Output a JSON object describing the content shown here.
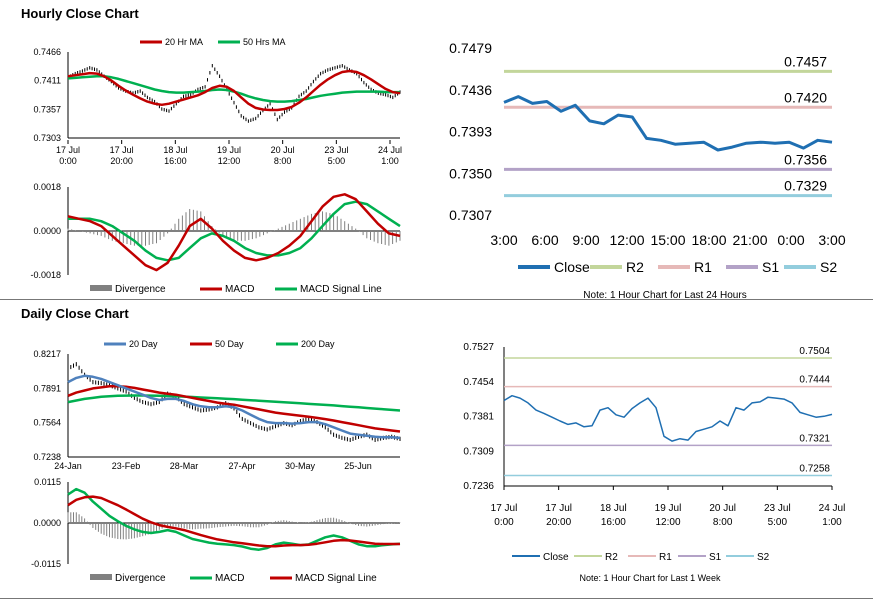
{
  "hourly_section_title": "Hourly Close Chart",
  "daily_section_title": "Daily Close Chart",
  "colors": {
    "red": "#c00000",
    "green": "#00b050",
    "blue": "#4f81bd",
    "dark_blue": "#1f6fb2",
    "price": "#000000",
    "hist": "#808080",
    "r2": "#c3d69b",
    "r1": "#e6b9b8",
    "s1": "#b3a2c7",
    "s2": "#93cddd"
  },
  "chart_data": [
    {
      "id": "hourly_price",
      "type": "line",
      "legend": [
        "20 Hr MA",
        "50 Hrs MA"
      ],
      "yticks": [
        "0.7466",
        "0.7411",
        "0.7357",
        "0.7303"
      ],
      "ylim": [
        0.7303,
        0.7466
      ],
      "xticks": [
        [
          "17 Jul",
          "0:00"
        ],
        [
          "17 Jul",
          "20:00"
        ],
        [
          "18 Jul",
          "16:00"
        ],
        [
          "19 Jul",
          "12:00"
        ],
        [
          "20 Jul",
          "8:00"
        ],
        [
          "23 Jul",
          "5:00"
        ],
        [
          "24 Jul",
          "1:00"
        ]
      ],
      "close": [
        0.7418,
        0.7425,
        0.743,
        0.7436,
        0.7432,
        0.742,
        0.741,
        0.7398,
        0.7392,
        0.7388,
        0.7392,
        0.738,
        0.7372,
        0.7358,
        0.7354,
        0.7368,
        0.7382,
        0.7385,
        0.7395,
        0.74,
        0.744,
        0.742,
        0.7395,
        0.737,
        0.7345,
        0.7335,
        0.734,
        0.7355,
        0.7368,
        0.7338,
        0.7352,
        0.736,
        0.7382,
        0.7392,
        0.741,
        0.7425,
        0.7432,
        0.7436,
        0.744,
        0.7432,
        0.7425,
        0.7408,
        0.7395,
        0.7388,
        0.7385,
        0.738,
        0.739
      ],
      "ma20": [
        0.742,
        0.7422,
        0.7424,
        0.7426,
        0.7425,
        0.742,
        0.7412,
        0.7402,
        0.7393,
        0.7385,
        0.7378,
        0.7372,
        0.7368,
        0.7366,
        0.7368,
        0.7372,
        0.7376,
        0.738,
        0.7384,
        0.739,
        0.7398,
        0.7402,
        0.74,
        0.7392,
        0.738,
        0.7368,
        0.736,
        0.7357,
        0.7356,
        0.7356,
        0.7358,
        0.7362,
        0.737,
        0.738,
        0.7392,
        0.7404,
        0.7414,
        0.7422,
        0.7428,
        0.743,
        0.7428,
        0.7422,
        0.7414,
        0.7405,
        0.7396,
        0.739,
        0.7388
      ],
      "ma50": [
        0.7416,
        0.7417,
        0.7418,
        0.7419,
        0.742,
        0.742,
        0.7418,
        0.7415,
        0.7411,
        0.7407,
        0.7403,
        0.7399,
        0.7395,
        0.7392,
        0.739,
        0.7389,
        0.7389,
        0.739,
        0.7391,
        0.7392,
        0.7394,
        0.7395,
        0.7394,
        0.7391,
        0.7387,
        0.7382,
        0.7378,
        0.7375,
        0.7373,
        0.7372,
        0.7372,
        0.7373,
        0.7375,
        0.7377,
        0.738,
        0.7383,
        0.7385,
        0.7387,
        0.7389,
        0.739,
        0.7391,
        0.7391,
        0.7391,
        0.7391,
        0.739,
        0.739,
        0.739
      ]
    },
    {
      "id": "hourly_macd",
      "type": "line",
      "legend": [
        "Divergence",
        "MACD",
        "MACD Signal Line"
      ],
      "yticks": [
        "0.0018",
        "0.0000",
        "-0.0018"
      ],
      "ylim": [
        -0.0018,
        0.0018
      ],
      "macd": [
        0.0006,
        0.0005,
        0.0004,
        0.0002,
        -0.0002,
        -0.0006,
        -0.001,
        -0.0014,
        -0.0016,
        -0.0013,
        -0.0006,
        0.0002,
        0.0005,
        0.0001,
        -0.0004,
        -0.0008,
        -0.0011,
        -0.0012,
        -0.0011,
        -0.0009,
        -0.0006,
        -0.0002,
        0.0004,
        0.001,
        0.0014,
        0.0015,
        0.0013,
        0.0008,
        0.0003,
        -0.0001,
        -0.0002
      ],
      "signal": [
        0.0005,
        0.0005,
        0.0005,
        0.0004,
        0.0002,
        -0.0001,
        -0.0004,
        -0.0008,
        -0.0011,
        -0.0012,
        -0.0011,
        -0.0007,
        -0.0003,
        -0.0001,
        -0.0002,
        -0.0004,
        -0.0007,
        -0.0009,
        -0.001,
        -0.001,
        -0.0009,
        -0.0007,
        -0.0003,
        0.0002,
        0.0007,
        0.0011,
        0.0012,
        0.0011,
        0.0008,
        0.0005,
        0.0002
      ],
      "divergence": [
        0.0001,
        0.0,
        -0.0001,
        -0.0002,
        -0.0004,
        -0.0005,
        -0.0006,
        -0.0006,
        -0.0005,
        -0.0001,
        0.0005,
        0.0009,
        0.0008,
        0.0002,
        -0.0002,
        -0.0004,
        -0.0004,
        -0.0003,
        -0.0001,
        0.0001,
        0.0003,
        0.0005,
        0.0007,
        0.0008,
        0.0007,
        0.0004,
        0.0001,
        -0.0003,
        -0.0005,
        -0.0006,
        -0.0004
      ]
    },
    {
      "id": "hourly_24h",
      "type": "line",
      "yticks": [
        "0.7479",
        "0.7436",
        "0.7393",
        "0.7350",
        "0.7307"
      ],
      "ylim": [
        0.7307,
        0.7479
      ],
      "xticks": [
        "3:00",
        "6:00",
        "9:00",
        "12:00",
        "15:00",
        "18:00",
        "21:00",
        "0:00",
        "3:00"
      ],
      "close": [
        0.7425,
        0.7431,
        0.7424,
        0.7426,
        0.7416,
        0.7422,
        0.7406,
        0.7403,
        0.7412,
        0.741,
        0.7388,
        0.7386,
        0.7382,
        0.7383,
        0.7384,
        0.7376,
        0.7379,
        0.7383,
        0.7384,
        0.7383,
        0.7384,
        0.7378,
        0.7386,
        0.7384
      ],
      "levels": {
        "R2": 0.7457,
        "R1": 0.742,
        "S1": 0.7356,
        "S2": 0.7329
      },
      "level_labels": {
        "R2": "0.7457",
        "R1": "0.7420",
        "S1": "0.7356",
        "S2": "0.7329"
      },
      "legend": [
        "Close",
        "R2",
        "R1",
        "S1",
        "S2"
      ],
      "note": "Note: 1 Hour Chart for Last 24 Hours"
    },
    {
      "id": "daily_price",
      "type": "line",
      "legend": [
        "20 Day",
        "50 Day",
        "200 Day"
      ],
      "yticks": [
        "0.8217",
        "0.7891",
        "0.7564",
        "0.7238"
      ],
      "ylim": [
        0.7238,
        0.8217
      ],
      "xticks": [
        "24-Jan",
        "23-Feb",
        "28-Mar",
        "27-Apr",
        "30-May",
        "25-Jun"
      ],
      "close": [
        0.808,
        0.812,
        0.802,
        0.795,
        0.794,
        0.792,
        0.789,
        0.786,
        0.78,
        0.776,
        0.774,
        0.776,
        0.784,
        0.781,
        0.774,
        0.771,
        0.768,
        0.769,
        0.771,
        0.775,
        0.77,
        0.76,
        0.756,
        0.752,
        0.75,
        0.753,
        0.756,
        0.754,
        0.758,
        0.76,
        0.757,
        0.752,
        0.745,
        0.742,
        0.74,
        0.743,
        0.745,
        0.74,
        0.742,
        0.743,
        0.741
      ],
      "ma20": [
        0.795,
        0.799,
        0.801,
        0.8,
        0.798,
        0.795,
        0.792,
        0.789,
        0.786,
        0.783,
        0.78,
        0.778,
        0.779,
        0.779,
        0.777,
        0.774,
        0.772,
        0.771,
        0.771,
        0.772,
        0.771,
        0.768,
        0.764,
        0.76,
        0.757,
        0.756,
        0.756,
        0.7555,
        0.756,
        0.757,
        0.757,
        0.755,
        0.752,
        0.749,
        0.746,
        0.745,
        0.744,
        0.743,
        0.7425,
        0.7425,
        0.742
      ],
      "ma50": [
        0.782,
        0.785,
        0.787,
        0.789,
        0.79,
        0.791,
        0.791,
        0.7905,
        0.7895,
        0.788,
        0.7865,
        0.785,
        0.784,
        0.783,
        0.7815,
        0.78,
        0.7785,
        0.777,
        0.7755,
        0.7745,
        0.7735,
        0.772,
        0.7705,
        0.769,
        0.7675,
        0.766,
        0.765,
        0.764,
        0.763,
        0.762,
        0.761,
        0.7598,
        0.7585,
        0.757,
        0.7555,
        0.754,
        0.7525,
        0.751,
        0.75,
        0.749,
        0.748
      ],
      "ma200": [
        0.776,
        0.7775,
        0.779,
        0.78,
        0.781,
        0.7815,
        0.782,
        0.7822,
        0.7823,
        0.7823,
        0.7822,
        0.782,
        0.7818,
        0.7815,
        0.7812,
        0.7808,
        0.7804,
        0.78,
        0.7796,
        0.7792,
        0.7788,
        0.7783,
        0.7778,
        0.7773,
        0.7768,
        0.7763,
        0.7758,
        0.7753,
        0.7748,
        0.7743,
        0.7738,
        0.7733,
        0.7728,
        0.7722,
        0.7716,
        0.771,
        0.7704,
        0.7698,
        0.7692,
        0.7686,
        0.768
      ]
    },
    {
      "id": "daily_macd",
      "type": "line",
      "legend": [
        "Divergence",
        "MACD",
        "MACD Signal Line"
      ],
      "yticks": [
        "0.0115",
        "0.0000",
        "-0.0115"
      ],
      "ylim": [
        -0.0115,
        0.0115
      ],
      "macd": [
        0.008,
        0.0095,
        0.0085,
        0.006,
        0.004,
        0.002,
        0.0005,
        -0.0008,
        -0.0018,
        -0.0025,
        -0.0028,
        -0.0025,
        -0.002,
        -0.0025,
        -0.0035,
        -0.0045,
        -0.005,
        -0.0055,
        -0.0058,
        -0.006,
        -0.0062,
        -0.0066,
        -0.0072,
        -0.0075,
        -0.007,
        -0.006,
        -0.0055,
        -0.0058,
        -0.0062,
        -0.006,
        -0.005,
        -0.004,
        -0.0035,
        -0.004,
        -0.005,
        -0.006,
        -0.0065,
        -0.0065,
        -0.0062,
        -0.006,
        -0.0058
      ],
      "signal": [
        0.005,
        0.0065,
        0.0072,
        0.0074,
        0.007,
        0.006,
        0.005,
        0.0038,
        0.0025,
        0.0012,
        0.0002,
        -0.0006,
        -0.0011,
        -0.0015,
        -0.002,
        -0.0027,
        -0.0034,
        -0.004,
        -0.0046,
        -0.005,
        -0.0054,
        -0.0057,
        -0.006,
        -0.0063,
        -0.0065,
        -0.0065,
        -0.0063,
        -0.0062,
        -0.0062,
        -0.0061,
        -0.0058,
        -0.0054,
        -0.005,
        -0.0048,
        -0.0049,
        -0.0052,
        -0.0055,
        -0.0058,
        -0.0059,
        -0.0059,
        -0.0059
      ],
      "divergence": [
        0.003,
        0.003,
        0.0013,
        -0.0014,
        -0.003,
        -0.004,
        -0.0045,
        -0.0046,
        -0.0043,
        -0.0037,
        -0.003,
        -0.0019,
        -0.0009,
        -0.001,
        -0.0015,
        -0.0018,
        -0.0016,
        -0.0015,
        -0.0012,
        -0.001,
        -0.0008,
        -0.0009,
        -0.0012,
        -0.0012,
        -0.0005,
        0.0005,
        0.0008,
        0.0004,
        0.0,
        0.0001,
        0.0008,
        0.0014,
        0.0015,
        0.0008,
        -0.0001,
        -0.0008,
        -0.001,
        -0.0007,
        -0.0003,
        -0.0001,
        0.0001
      ]
    },
    {
      "id": "daily_week",
      "type": "line",
      "yticks": [
        "0.7527",
        "0.7454",
        "0.7381",
        "0.7309",
        "0.7236"
      ],
      "ylim": [
        0.7236,
        0.7527
      ],
      "xticks": [
        [
          "17 Jul",
          "0:00"
        ],
        [
          "17 Jul",
          "20:00"
        ],
        [
          "18 Jul",
          "16:00"
        ],
        [
          "19 Jul",
          "12:00"
        ],
        [
          "20 Jul",
          "8:00"
        ],
        [
          "23 Jul",
          "5:00"
        ],
        [
          "24 Jul",
          "1:00"
        ]
      ],
      "close": [
        0.7415,
        0.7425,
        0.742,
        0.741,
        0.7395,
        0.7388,
        0.738,
        0.7372,
        0.7365,
        0.7368,
        0.736,
        0.7362,
        0.7395,
        0.74,
        0.7385,
        0.738,
        0.7398,
        0.741,
        0.742,
        0.74,
        0.734,
        0.733,
        0.7335,
        0.7332,
        0.735,
        0.7355,
        0.736,
        0.7372,
        0.7362,
        0.74,
        0.7395,
        0.741,
        0.7412,
        0.7422,
        0.742,
        0.7418,
        0.741,
        0.739,
        0.7385,
        0.738,
        0.7382,
        0.7386
      ],
      "levels": {
        "R2": 0.7504,
        "R1": 0.7444,
        "S1": 0.7321,
        "S2": 0.7258
      },
      "level_labels": {
        "R2": "0.7504",
        "R1": "0.7444",
        "S1": "0.7321",
        "S2": "0.7258"
      },
      "legend": [
        "Close",
        "R2",
        "R1",
        "S1",
        "S2"
      ],
      "note": "Note: 1 Hour Chart for Last 1 Week"
    }
  ]
}
